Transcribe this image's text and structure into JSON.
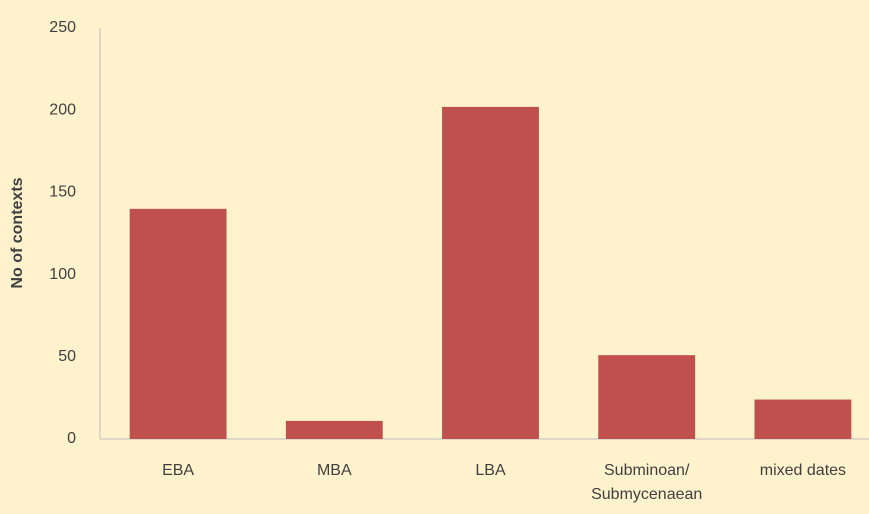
{
  "chart_data": {
    "type": "bar",
    "y_label": "No of contexts",
    "categories": [
      "EBA",
      "MBA",
      "LBA",
      "Subminoan/Submycenaean",
      "mixed dates"
    ],
    "values": [
      140,
      11,
      202,
      51,
      24
    ],
    "color": "#c0504d",
    "ylim": [
      0,
      250
    ],
    "yticks": [
      0,
      50,
      100,
      150,
      200,
      250
    ],
    "grid": false
  }
}
